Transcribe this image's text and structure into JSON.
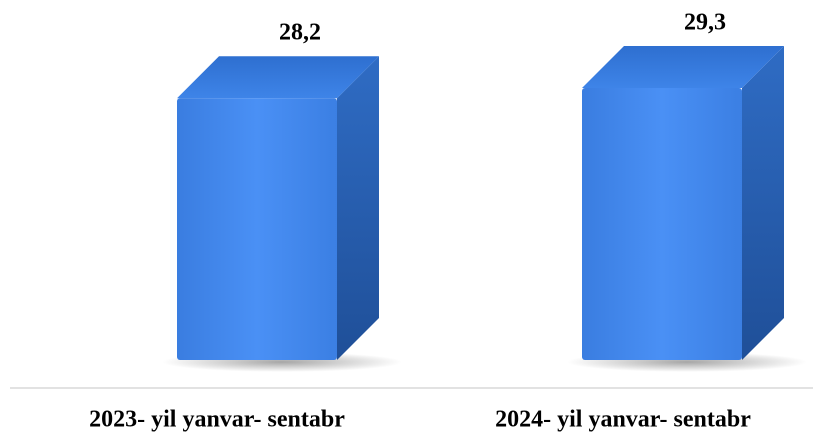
{
  "chart_data": {
    "type": "bar3d",
    "categories": [
      "2023- yil yanvar- sentabr",
      "2024- yil yanvar- sentabr"
    ],
    "values": [
      28.2,
      29.3
    ],
    "value_labels": [
      "28,2",
      "29,3"
    ],
    "color": "#3d7fe0"
  }
}
